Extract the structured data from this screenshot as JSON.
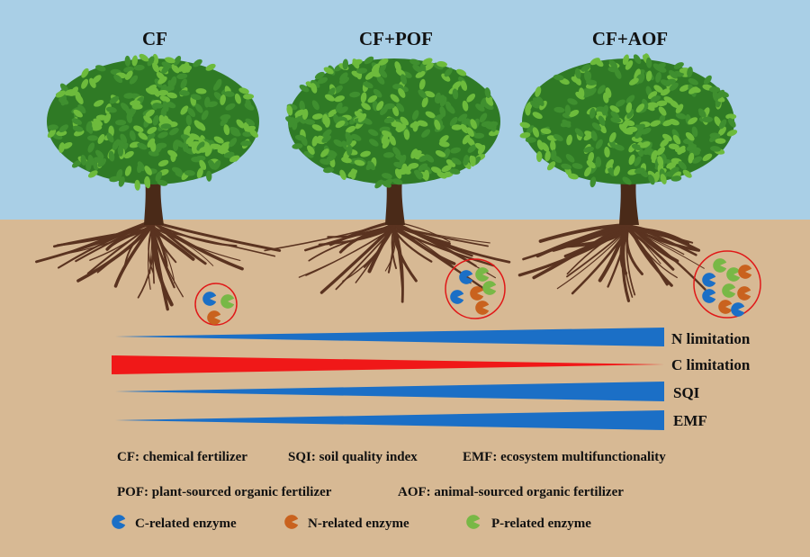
{
  "colors": {
    "sky": "#a9cfe6",
    "soil": "#d7b994",
    "leaf": "#3f8f2f",
    "leaf_light": "#6dbb3c",
    "trunk": "#4a2a18",
    "root": "#5a3320",
    "c_enzyme": "#1b6fc6",
    "n_enzyme": "#c9621e",
    "p_enzyme": "#78b846",
    "gradient_blue": "#1b6fc6",
    "gradient_red": "#f01818",
    "highlight_circle": "#e01818"
  },
  "treatments": [
    {
      "label": "CF",
      "enzymes": {
        "C": 1,
        "N": 1,
        "P": 1
      }
    },
    {
      "label": "CF+POF",
      "enzymes": {
        "C": 2,
        "N": 2,
        "P": 2
      }
    },
    {
      "label": "CF+AOF",
      "enzymes": {
        "C": 3,
        "N": 3,
        "P": 3
      }
    }
  ],
  "trends": [
    {
      "label": "N limitation",
      "direction": "increasing",
      "color": "blue"
    },
    {
      "label": "C limitation",
      "direction": "decreasing",
      "color": "red"
    },
    {
      "label": "SQI",
      "direction": "increasing",
      "color": "blue"
    },
    {
      "label": "EMF",
      "direction": "increasing",
      "color": "blue"
    }
  ],
  "abbreviations": [
    "CF: chemical fertilizer",
    "SQI: soil quality index",
    "EMF: ecosystem multifunctionality",
    "POF: plant-sourced organic fertilizer",
    "AOF: animal-sourced organic fertilizer"
  ],
  "legend": [
    {
      "label": "C-related enzyme",
      "color": "#1b6fc6"
    },
    {
      "label": "N-related enzyme",
      "color": "#c9621e"
    },
    {
      "label": "P-related enzyme",
      "color": "#78b846"
    }
  ]
}
